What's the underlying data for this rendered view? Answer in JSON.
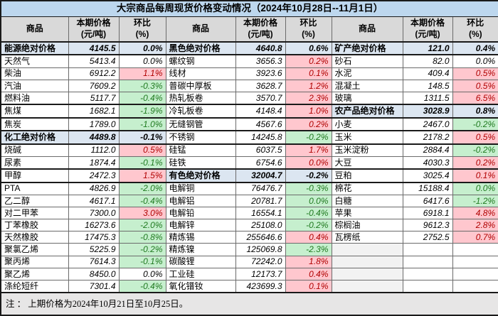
{
  "title": "大宗商品每周现货价格变动情况（2024年10月28日--11月1日）",
  "headers": {
    "commodity": "商品",
    "price_l1": "本期价格",
    "price_l2": "(元/吨)",
    "change_l1": "环比",
    "change_l2": "(%)"
  },
  "note": "注 ： 上期价格为2024年10月21日至10月25日。",
  "colors": {
    "title_bg": "#BDD7EE",
    "header_bg": "#D9D9D9",
    "category_bg": "#DCE6F1",
    "up_bg": "#FFC7CE",
    "up_text": "#B00000",
    "down_bg": "#C6EFCE",
    "down_text": "#1F7A1F",
    "note_bg": "#E7E6E6"
  },
  "groups": [
    {
      "rows": [
        {
          "name": "能源绝对价格",
          "price": "4145.5",
          "change": "0.0%",
          "kind": "category"
        },
        {
          "name": "天然气",
          "price": "5413.4",
          "change": "0.0%",
          "kind": "flat"
        },
        {
          "name": "柴油",
          "price": "6912.2",
          "change": "1.1%",
          "kind": "up"
        },
        {
          "name": "汽油",
          "price": "7609.2",
          "change": "-0.3%",
          "kind": "down"
        },
        {
          "name": "燃料油",
          "price": "5117.7",
          "change": "-0.4%",
          "kind": "down"
        },
        {
          "name": "焦煤",
          "price": "1682.1",
          "change": "-1.9%",
          "kind": "down"
        },
        {
          "name": "焦炭",
          "price": "1789.0",
          "change": "-1.0%",
          "kind": "down"
        },
        {
          "name": "化工绝对价格",
          "price": "4489.8",
          "change": "-0.1%",
          "kind": "category"
        },
        {
          "name": "烧碱",
          "price": "1112.0",
          "change": "0.5%",
          "kind": "up"
        },
        {
          "name": "尿素",
          "price": "1874.4",
          "change": "-0.1%",
          "kind": "down"
        },
        {
          "name": "甲醇",
          "price": "2472.3",
          "change": "1.5%",
          "kind": "up"
        },
        {
          "name": "PTA",
          "price": "4826.9",
          "change": "-2.0%",
          "kind": "down"
        },
        {
          "name": "乙二醇",
          "price": "4617.1",
          "change": "-0.4%",
          "kind": "down"
        },
        {
          "name": "对二甲苯",
          "price": "7300.0",
          "change": "3.0%",
          "kind": "up"
        },
        {
          "name": "丁苯橡胶",
          "price": "16273.6",
          "change": "-2.0%",
          "kind": "down"
        },
        {
          "name": "天然橡胶",
          "price": "17475.3",
          "change": "-0.8%",
          "kind": "down"
        },
        {
          "name": "聚氯乙烯",
          "price": "5225.9",
          "change": "-0.2%",
          "kind": "down"
        },
        {
          "name": "聚丙烯",
          "price": "7614.3",
          "change": "-0.1%",
          "kind": "down"
        },
        {
          "name": "聚乙烯",
          "price": "8450.0",
          "change": "0.0%",
          "kind": "flat"
        },
        {
          "name": "涤纶短纤",
          "price": "7301.4",
          "change": "-0.4%",
          "kind": "down"
        }
      ]
    },
    {
      "rows": [
        {
          "name": "黑色绝对价格",
          "price": "4640.8",
          "change": "0.6%",
          "kind": "category"
        },
        {
          "name": "螺纹钢",
          "price": "3656.3",
          "change": "0.2%",
          "kind": "up"
        },
        {
          "name": "线材",
          "price": "3923.6",
          "change": "0.1%",
          "kind": "up"
        },
        {
          "name": "普碳中厚板",
          "price": "3628.7",
          "change": "1.2%",
          "kind": "up"
        },
        {
          "name": "热轧板卷",
          "price": "3570.7",
          "change": "2.3%",
          "kind": "up"
        },
        {
          "name": "冷轧板卷",
          "price": "4148.4",
          "change": "1.0%",
          "kind": "up"
        },
        {
          "name": "无缝钢管",
          "price": "4567.6",
          "change": "0.2%",
          "kind": "up"
        },
        {
          "name": "不锈钢",
          "price": "14245.8",
          "change": "-0.2%",
          "kind": "down"
        },
        {
          "name": "硅锰",
          "price": "6037.5",
          "change": "1.7%",
          "kind": "up"
        },
        {
          "name": "硅铁",
          "price": "6754.6",
          "change": "0.0%",
          "kind": "up"
        },
        {
          "name": "有色绝对价格",
          "price": "32004.7",
          "change": "-0.2%",
          "kind": "category"
        },
        {
          "name": "电解铜",
          "price": "76476.7",
          "change": "-0.3%",
          "kind": "down"
        },
        {
          "name": "电解铝",
          "price": "20781.7",
          "change": "0.0%",
          "kind": "down"
        },
        {
          "name": "电解铅",
          "price": "16554.1",
          "change": "-0.4%",
          "kind": "down"
        },
        {
          "name": "电解锌",
          "price": "25108.0",
          "change": "-0.2%",
          "kind": "down"
        },
        {
          "name": "精炼锡",
          "price": "255646.6",
          "change": "0.4%",
          "kind": "up"
        },
        {
          "name": "精炼镍",
          "price": "125069.8",
          "change": "-2.3%",
          "kind": "down"
        },
        {
          "name": "碳酸锂",
          "price": "72242.0",
          "change": "1.8%",
          "kind": "up"
        },
        {
          "name": "工业硅",
          "price": "12173.7",
          "change": "0.4%",
          "kind": "up"
        },
        {
          "name": "氧化镨钕",
          "price": "423699.3",
          "change": "0.1%",
          "kind": "up"
        }
      ]
    },
    {
      "rows": [
        {
          "name": "矿产绝对价格",
          "price": "121.0",
          "change": "0.4%",
          "kind": "category"
        },
        {
          "name": "砂石",
          "price": "82.0",
          "change": "0.0%",
          "kind": "flat"
        },
        {
          "name": "水泥",
          "price": "409.4",
          "change": "0.5%",
          "kind": "up"
        },
        {
          "name": "混凝土",
          "price": "148.5",
          "change": "0.5%",
          "kind": "up"
        },
        {
          "name": "玻璃",
          "price": "1311.5",
          "change": "6.5%",
          "kind": "up"
        },
        {
          "name": "农产品绝对价格",
          "price": "3028.9",
          "change": "0.8%",
          "kind": "category"
        },
        {
          "name": "小麦",
          "price": "2467.0",
          "change": "-0.2%",
          "kind": "down"
        },
        {
          "name": "玉米",
          "price": "2178.2",
          "change": "0.5%",
          "kind": "up"
        },
        {
          "name": "玉米淀粉",
          "price": "2884.4",
          "change": "-0.2%",
          "kind": "down"
        },
        {
          "name": "大豆",
          "price": "4030.3",
          "change": "0.2%",
          "kind": "up"
        },
        {
          "name": "豆粕",
          "price": "3025.4",
          "change": "0.1%",
          "kind": "up"
        },
        {
          "name": "棉花",
          "price": "15188.4",
          "change": "0.0%",
          "kind": "down"
        },
        {
          "name": "白糖",
          "price": "6417.6",
          "change": "-1.2%",
          "kind": "down"
        },
        {
          "name": "苹果",
          "price": "6918.1",
          "change": "4.8%",
          "kind": "up"
        },
        {
          "name": "棕榈油",
          "price": "9612.3",
          "change": "2.8%",
          "kind": "up"
        },
        {
          "name": "瓦楞纸",
          "price": "2752.5",
          "change": "0.7%",
          "kind": "up"
        },
        {
          "name": "",
          "price": "",
          "change": "",
          "kind": "empty"
        },
        {
          "name": "",
          "price": "",
          "change": "",
          "kind": "empty"
        },
        {
          "name": "",
          "price": "",
          "change": "",
          "kind": "empty"
        },
        {
          "name": "",
          "price": "",
          "change": "",
          "kind": "empty"
        }
      ]
    }
  ]
}
